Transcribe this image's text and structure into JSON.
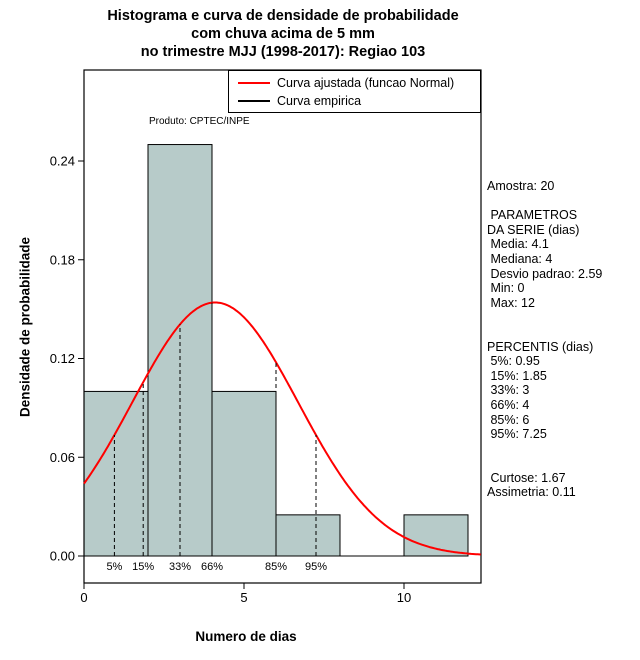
{
  "title": {
    "line1": "Histograma e curva de densidade de probabilidade",
    "line2": "com chuva acima de 5 mm",
    "line3": "no trimestre MJJ (1998-2017): Regiao 103"
  },
  "legend": {
    "items": [
      {
        "label": "Curva ajustada (funcao Normal)",
        "color": "#ff0000"
      },
      {
        "label": "Curva empirica",
        "color": "#000000"
      }
    ]
  },
  "annotations": {
    "product_label": "Produto: CPTEC/INPE"
  },
  "side_panel": {
    "lines": [
      "Amostra: 20",
      "",
      " PARAMETROS",
      "DA SERIE (dias)",
      " Media: 4.1",
      " Mediana: 4",
      " Desvio padrao: 2.59",
      " Min: 0",
      " Max: 12",
      "",
      "",
      "PERCENTIS (dias)",
      " 5%: 0.95",
      " 15%: 1.85",
      " 33%: 3",
      " 66%: 4",
      " 85%: 6",
      " 95%: 7.25",
      "",
      "",
      " Curtose: 1.67",
      "Assimetria: 0.11"
    ]
  },
  "chart_data": {
    "type": "bar",
    "subtype": "histogram_with_normal_density_curve",
    "title": "Histograma e curva de densidade de probabilidade com chuva acima de 5 mm no trimestre MJJ (1998-2017): Regiao 103",
    "xlabel": "Numero de dias",
    "ylabel": "Densidade de probabilidade",
    "xlim": [
      0,
      12.4
    ],
    "ylim": [
      0,
      0.295
    ],
    "x_ticks": [
      0,
      5,
      10
    ],
    "y_ticks": [
      0,
      0.06,
      0.12,
      0.18,
      0.24
    ],
    "bar_fill": "#b7cbc9",
    "bar_stroke": "#000000",
    "bars": [
      {
        "from": 0,
        "to": 2,
        "density": 0.1
      },
      {
        "from": 2,
        "to": 4,
        "density": 0.25
      },
      {
        "from": 4,
        "to": 6,
        "density": 0.1
      },
      {
        "from": 6,
        "to": 8,
        "density": 0.025
      },
      {
        "from": 8,
        "to": 10,
        "density": 0.0
      },
      {
        "from": 10,
        "to": 12,
        "density": 0.025
      }
    ],
    "normal_curve": {
      "mean": 4.1,
      "sd": 2.59,
      "color": "#ff0000",
      "x_range": [
        0,
        12.4
      ]
    },
    "percentile_lines": [
      {
        "label": "5%",
        "x": 0.95
      },
      {
        "label": "15%",
        "x": 1.85
      },
      {
        "label": "33%",
        "x": 3
      },
      {
        "label": "66%",
        "x": 4
      },
      {
        "label": "85%",
        "x": 6
      },
      {
        "label": "95%",
        "x": 7.25
      }
    ]
  }
}
